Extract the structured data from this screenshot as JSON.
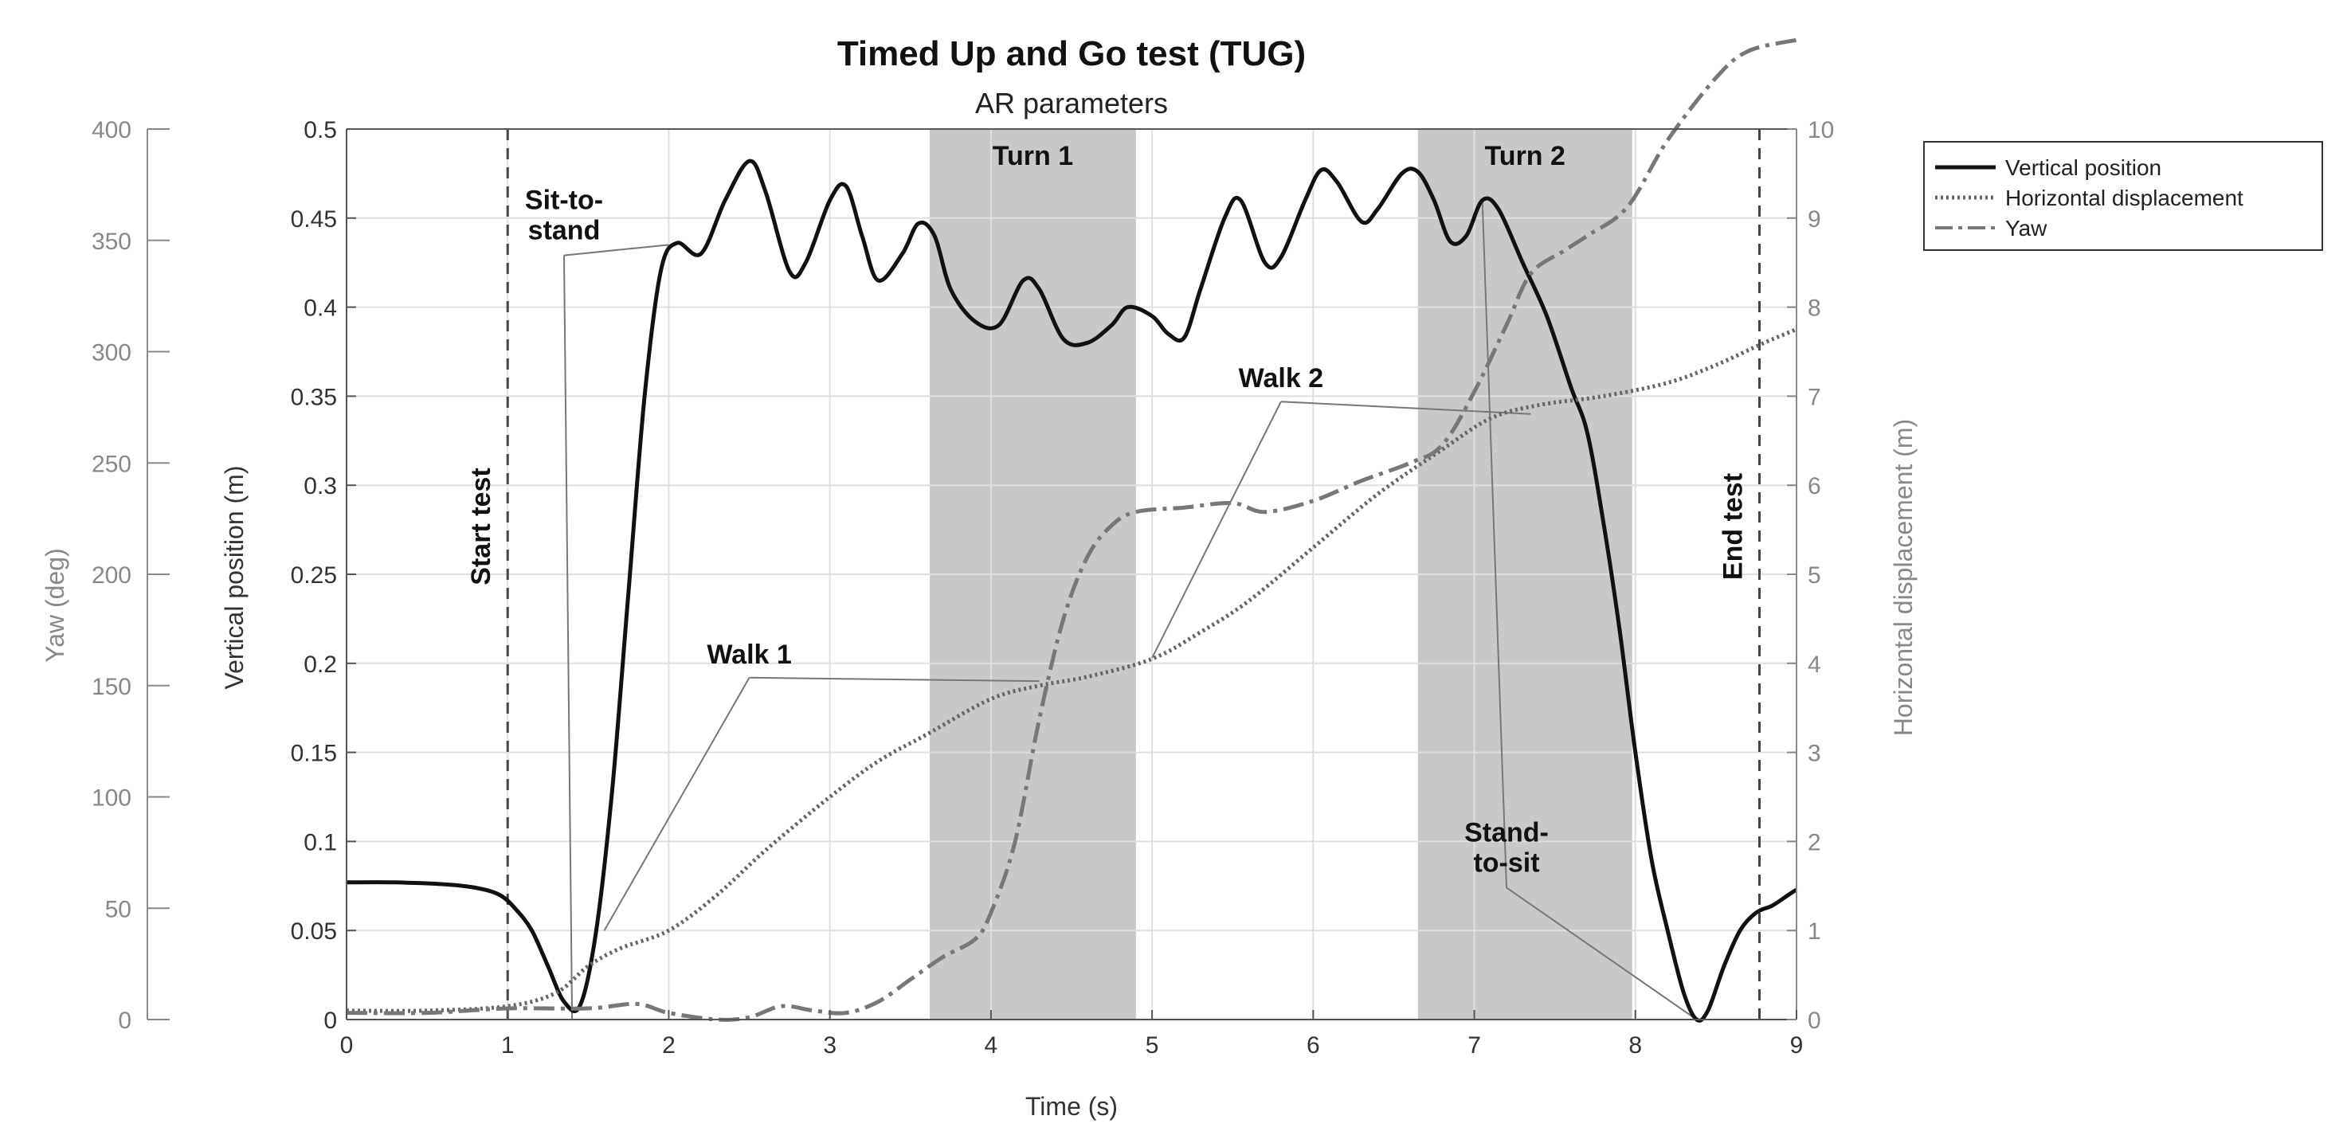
{
  "chart_data": {
    "type": "line",
    "title": "Timed Up and Go test (TUG)",
    "subtitle": "AR parameters",
    "xlabel": "Time (s)",
    "ylabel_left": "Vertical position (m)",
    "ylabel_yaw": "Yaw (deg)",
    "ylabel_right": "Horizontal displacement (m)",
    "xlim": [
      0,
      9
    ],
    "ylim_left": [
      0,
      0.5
    ],
    "ylim_yaw": [
      0,
      400
    ],
    "ylim_right": [
      0,
      10
    ],
    "x_ticks": [
      "0",
      "1",
      "2",
      "3",
      "4",
      "5",
      "6",
      "7",
      "8",
      "9"
    ],
    "left_ticks": [
      "0",
      "0.05",
      "0.1",
      "0.15",
      "0.2",
      "0.25",
      "0.3",
      "0.35",
      "0.4",
      "0.45",
      "0.5"
    ],
    "yaw_ticks": [
      "0",
      "50",
      "100",
      "150",
      "200",
      "250",
      "300",
      "350",
      "400"
    ],
    "right_ticks": [
      "0",
      "1",
      "2",
      "3",
      "4",
      "5",
      "6",
      "7",
      "8",
      "9",
      "10"
    ],
    "grid": true,
    "legend_position": "top-right",
    "shaded_regions": [
      {
        "label": "Turn 1",
        "x_start": 3.62,
        "x_end": 4.9
      },
      {
        "label": "Turn 2",
        "x_start": 6.65,
        "x_end": 7.98
      }
    ],
    "vertical_markers": [
      {
        "label": "Start test",
        "x": 1.0
      },
      {
        "label": "End test",
        "x": 8.77
      }
    ],
    "annotations": [
      {
        "label": "Sit-to-\nstand",
        "x": 1.35,
        "y": 0.455,
        "targets": [
          [
            1.4,
            0.0
          ],
          [
            2.0,
            0.435
          ]
        ]
      },
      {
        "label": "Walk 1",
        "x": 2.5,
        "y": 0.2,
        "targets": [
          [
            1.6,
            0.05
          ],
          [
            4.3,
            0.19
          ]
        ]
      },
      {
        "label": "Walk 2",
        "x": 5.8,
        "y": 0.355,
        "targets": [
          [
            5.0,
            0.203
          ],
          [
            7.35,
            0.34
          ]
        ]
      },
      {
        "label": "Stand-\nto-sit",
        "x": 7.2,
        "y": 0.1,
        "targets": [
          [
            7.05,
            0.46
          ],
          [
            8.38,
            0.0
          ]
        ]
      }
    ],
    "series": [
      {
        "name": "Vertical position",
        "axis": "left",
        "style": "solid",
        "color": "#111111",
        "points": [
          [
            0,
            0.077
          ],
          [
            0.3,
            0.077
          ],
          [
            0.6,
            0.076
          ],
          [
            0.8,
            0.074
          ],
          [
            0.95,
            0.07
          ],
          [
            1.05,
            0.062
          ],
          [
            1.15,
            0.05
          ],
          [
            1.25,
            0.03
          ],
          [
            1.35,
            0.01
          ],
          [
            1.45,
            0.008
          ],
          [
            1.55,
            0.05
          ],
          [
            1.65,
            0.13
          ],
          [
            1.75,
            0.24
          ],
          [
            1.85,
            0.35
          ],
          [
            1.95,
            0.42
          ],
          [
            2.05,
            0.436
          ],
          [
            2.2,
            0.43
          ],
          [
            2.35,
            0.46
          ],
          [
            2.5,
            0.482
          ],
          [
            2.6,
            0.465
          ],
          [
            2.75,
            0.42
          ],
          [
            2.85,
            0.425
          ],
          [
            3.0,
            0.46
          ],
          [
            3.1,
            0.468
          ],
          [
            3.2,
            0.44
          ],
          [
            3.3,
            0.415
          ],
          [
            3.45,
            0.43
          ],
          [
            3.55,
            0.447
          ],
          [
            3.65,
            0.44
          ],
          [
            3.75,
            0.41
          ],
          [
            3.9,
            0.392
          ],
          [
            4.05,
            0.39
          ],
          [
            4.2,
            0.415
          ],
          [
            4.3,
            0.41
          ],
          [
            4.45,
            0.382
          ],
          [
            4.6,
            0.38
          ],
          [
            4.75,
            0.39
          ],
          [
            4.85,
            0.4
          ],
          [
            5.0,
            0.395
          ],
          [
            5.1,
            0.385
          ],
          [
            5.2,
            0.383
          ],
          [
            5.3,
            0.41
          ],
          [
            5.45,
            0.45
          ],
          [
            5.55,
            0.46
          ],
          [
            5.7,
            0.425
          ],
          [
            5.8,
            0.428
          ],
          [
            5.95,
            0.46
          ],
          [
            6.05,
            0.477
          ],
          [
            6.15,
            0.47
          ],
          [
            6.3,
            0.448
          ],
          [
            6.4,
            0.455
          ],
          [
            6.55,
            0.475
          ],
          [
            6.65,
            0.476
          ],
          [
            6.75,
            0.46
          ],
          [
            6.85,
            0.437
          ],
          [
            6.95,
            0.44
          ],
          [
            7.05,
            0.46
          ],
          [
            7.15,
            0.455
          ],
          [
            7.3,
            0.425
          ],
          [
            7.45,
            0.395
          ],
          [
            7.6,
            0.355
          ],
          [
            7.7,
            0.33
          ],
          [
            7.8,
            0.28
          ],
          [
            7.9,
            0.22
          ],
          [
            8.0,
            0.15
          ],
          [
            8.1,
            0.09
          ],
          [
            8.2,
            0.05
          ],
          [
            8.3,
            0.015
          ],
          [
            8.38,
            0.0
          ],
          [
            8.45,
            0.005
          ],
          [
            8.55,
            0.03
          ],
          [
            8.65,
            0.05
          ],
          [
            8.75,
            0.06
          ],
          [
            8.85,
            0.064
          ],
          [
            8.95,
            0.07
          ],
          [
            9.0,
            0.073
          ]
        ]
      },
      {
        "name": "Horizontal displacement",
        "axis": "right",
        "style": "dotted",
        "color": "#666666",
        "points": [
          [
            0,
            0.1
          ],
          [
            0.5,
            0.1
          ],
          [
            1.0,
            0.15
          ],
          [
            1.3,
            0.3
          ],
          [
            1.5,
            0.6
          ],
          [
            1.7,
            0.8
          ],
          [
            2.0,
            1.0
          ],
          [
            2.3,
            1.4
          ],
          [
            2.6,
            1.9
          ],
          [
            3.0,
            2.5
          ],
          [
            3.3,
            2.9
          ],
          [
            3.6,
            3.2
          ],
          [
            4.0,
            3.6
          ],
          [
            4.3,
            3.75
          ],
          [
            4.6,
            3.85
          ],
          [
            5.0,
            4.05
          ],
          [
            5.3,
            4.35
          ],
          [
            5.6,
            4.7
          ],
          [
            6.0,
            5.3
          ],
          [
            6.4,
            5.9
          ],
          [
            6.8,
            6.4
          ],
          [
            7.1,
            6.75
          ],
          [
            7.4,
            6.9
          ],
          [
            7.8,
            7.0
          ],
          [
            8.2,
            7.15
          ],
          [
            8.5,
            7.35
          ],
          [
            8.8,
            7.6
          ],
          [
            9.0,
            7.75
          ]
        ]
      },
      {
        "name": "Yaw",
        "axis": "yaw",
        "style": "dashdot",
        "color": "#777777",
        "points": [
          [
            0,
            3
          ],
          [
            0.5,
            3
          ],
          [
            1.0,
            5
          ],
          [
            1.5,
            5
          ],
          [
            1.8,
            7
          ],
          [
            2.0,
            3
          ],
          [
            2.3,
            0
          ],
          [
            2.5,
            1
          ],
          [
            2.7,
            6
          ],
          [
            2.9,
            4
          ],
          [
            3.1,
            3
          ],
          [
            3.3,
            8
          ],
          [
            3.5,
            18
          ],
          [
            3.7,
            28
          ],
          [
            3.9,
            36
          ],
          [
            4.0,
            48
          ],
          [
            4.15,
            80
          ],
          [
            4.3,
            135
          ],
          [
            4.45,
            180
          ],
          [
            4.6,
            208
          ],
          [
            4.75,
            222
          ],
          [
            4.9,
            228
          ],
          [
            5.2,
            230
          ],
          [
            5.5,
            232
          ],
          [
            5.7,
            228
          ],
          [
            6.0,
            233
          ],
          [
            6.3,
            242
          ],
          [
            6.6,
            250
          ],
          [
            6.8,
            258
          ],
          [
            7.0,
            282
          ],
          [
            7.2,
            312
          ],
          [
            7.35,
            335
          ],
          [
            7.55,
            345
          ],
          [
            7.7,
            352
          ],
          [
            7.95,
            365
          ],
          [
            8.2,
            395
          ],
          [
            8.5,
            423
          ],
          [
            8.7,
            435
          ],
          [
            9.0,
            440
          ]
        ]
      }
    ]
  }
}
